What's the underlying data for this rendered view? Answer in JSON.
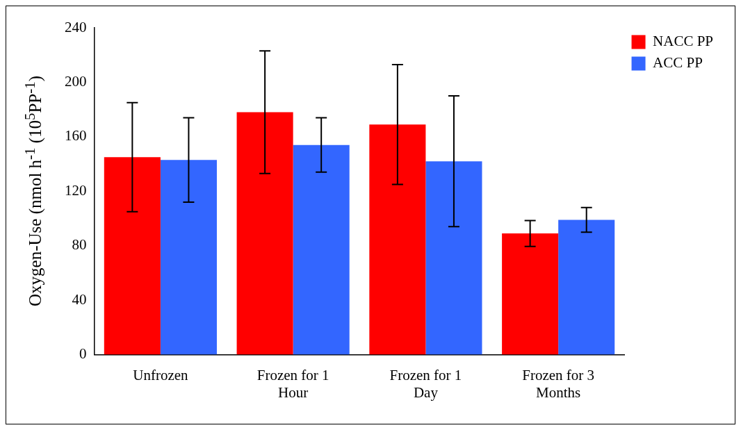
{
  "chart_data": {
    "type": "bar",
    "ylabel": "Oxygen-Use (nmol h$^{-1}$ (10$^{5}$PP$^{-1}$)",
    "categories": [
      "Unfrozen",
      "Frozen for 1 Hour",
      "Frozen for 1 Day",
      "Frozen for 3 Months"
    ],
    "series": [
      {
        "name": "NACC PP",
        "color": "#ff0000",
        "values": [
          145,
          178,
          169,
          89
        ],
        "errors": [
          40,
          45,
          44,
          9.5
        ]
      },
      {
        "name": "ACC PP",
        "color": "#3366ff",
        "values": [
          143,
          154,
          142,
          99
        ],
        "errors": [
          31,
          20,
          48,
          9
        ]
      }
    ],
    "ylim": [
      0,
      240
    ],
    "yticks": [
      0,
      40,
      80,
      120,
      160,
      200,
      240
    ],
    "grid": false,
    "legend": "top right"
  }
}
